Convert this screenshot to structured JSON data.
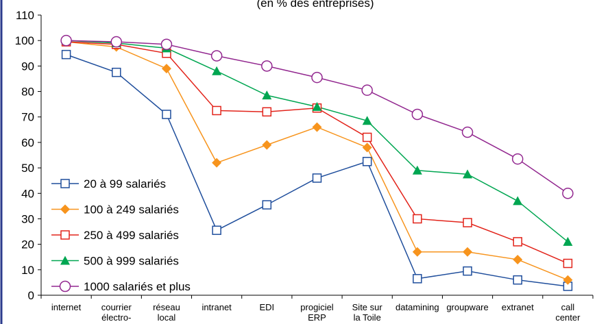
{
  "chart_data": {
    "type": "line",
    "title": "(en % des entreprises)",
    "categories": [
      "internet",
      "courrier\nélectro-",
      "réseau\nlocal",
      "intranet",
      "EDI",
      "progiciel\nERP",
      "Site sur\nla Toile",
      "datamining",
      "groupware",
      "extranet",
      "call\ncenter"
    ],
    "series": [
      {
        "name": "20 à 99 salariés",
        "color": "#1f4e9c",
        "marker": "square",
        "values": [
          94.5,
          87.5,
          71,
          25.5,
          35.5,
          46,
          52.5,
          6.5,
          9.5,
          6,
          3.5
        ]
      },
      {
        "name": "100 à 249 salariés",
        "color": "#f7941d",
        "marker": "diamond",
        "values": [
          99.5,
          97.5,
          89,
          52,
          59,
          66,
          58,
          17,
          17,
          14,
          6
        ]
      },
      {
        "name": "250 à 499 salariés",
        "color": "#e2231a",
        "marker": "square",
        "values": [
          99.5,
          98.5,
          95,
          72.5,
          72,
          73.5,
          62,
          30,
          28.5,
          21,
          12.5
        ]
      },
      {
        "name": "500 à 999 salariés",
        "color": "#00a651",
        "marker": "triangle",
        "values": [
          100,
          99,
          97,
          88,
          78.5,
          74,
          68.5,
          49,
          47.5,
          37,
          21
        ]
      },
      {
        "name": "1000 salariés et plus",
        "color": "#92278f",
        "marker": "circle",
        "values": [
          100,
          99.5,
          98.5,
          94,
          90,
          85.5,
          80.5,
          71,
          64,
          53.5,
          40
        ]
      }
    ],
    "ylim": [
      0,
      110
    ],
    "yticks": [
      0,
      10,
      20,
      30,
      40,
      50,
      60,
      70,
      80,
      90,
      100,
      110
    ]
  }
}
